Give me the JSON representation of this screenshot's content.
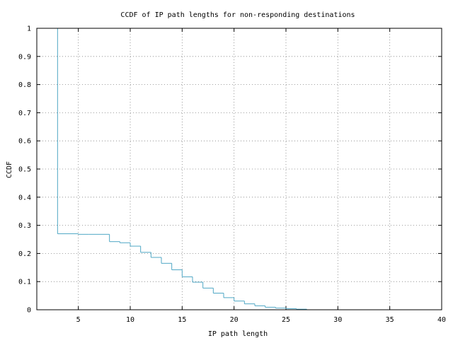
{
  "chart_data": {
    "type": "line",
    "title": "CCDF of IP path lengths for non-responding destinations",
    "xlabel": "IP path length",
    "ylabel": "CCDF",
    "xlim": [
      1,
      40
    ],
    "ylim": [
      0,
      1
    ],
    "x_ticks": [
      5,
      10,
      15,
      20,
      25,
      30,
      35,
      40
    ],
    "x_tick_labels": [
      "5",
      "10",
      "15",
      "20",
      "25",
      "30",
      "35",
      "40"
    ],
    "y_ticks": [
      0,
      0.1,
      0.2,
      0.3,
      0.4,
      0.5,
      0.6,
      0.7,
      0.8,
      0.9,
      1
    ],
    "y_tick_labels": [
      "0",
      "0.1",
      "0.2",
      "0.3",
      "0.4",
      "0.5",
      "0.6",
      "0.7",
      "0.8",
      "0.9",
      "1"
    ],
    "grid": true,
    "line_color": "#4fa7c5",
    "series": [
      {
        "style": "step",
        "points": [
          [
            3,
            1.0
          ],
          [
            3,
            0.27
          ],
          [
            4,
            0.27
          ],
          [
            5,
            0.268
          ],
          [
            6,
            0.268
          ],
          [
            7,
            0.268
          ],
          [
            8,
            0.242
          ],
          [
            9,
            0.238
          ],
          [
            10,
            0.226
          ],
          [
            11,
            0.204
          ],
          [
            12,
            0.186
          ],
          [
            13,
            0.165
          ],
          [
            14,
            0.142
          ],
          [
            15,
            0.117
          ],
          [
            16,
            0.098
          ],
          [
            17,
            0.077
          ],
          [
            18,
            0.059
          ],
          [
            19,
            0.043
          ],
          [
            20,
            0.031
          ],
          [
            21,
            0.021
          ],
          [
            22,
            0.014
          ],
          [
            23,
            0.009
          ],
          [
            24,
            0.006
          ],
          [
            25,
            0.004
          ],
          [
            26,
            0.002
          ],
          [
            27,
            0.0
          ],
          [
            38,
            0.0
          ]
        ]
      }
    ]
  }
}
